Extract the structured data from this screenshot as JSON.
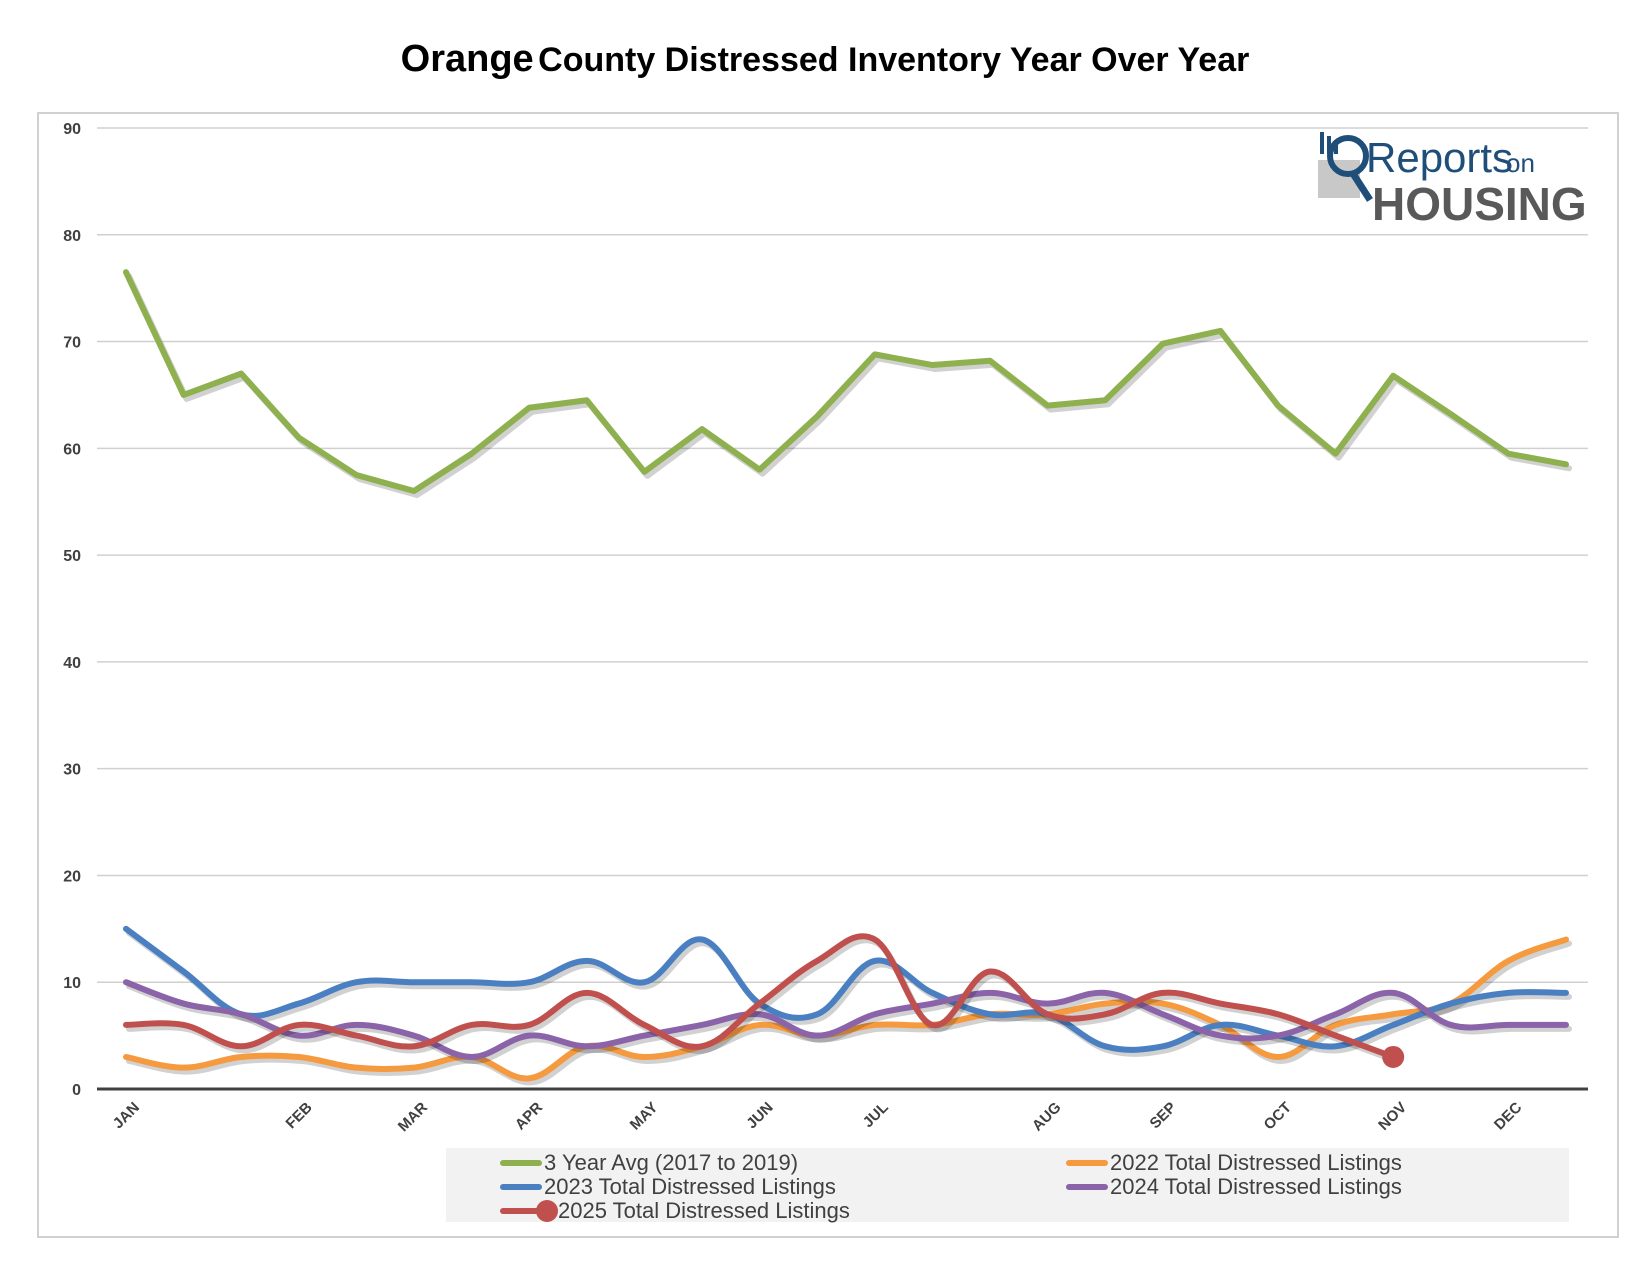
{
  "title": {
    "first_word": "Orange",
    "rest": "County Distressed Inventory Year Over Year"
  },
  "logo": {
    "reports": "Reports",
    "on": "on",
    "housing": "HOUSING"
  },
  "chart_data": {
    "type": "line",
    "title": "Orange County Distressed Inventory Year Over Year",
    "ylim": [
      0,
      90
    ],
    "yticks": [
      0,
      10,
      20,
      30,
      40,
      50,
      60,
      70,
      80,
      90
    ],
    "grid": true,
    "legend_position": "bottom",
    "month_labels": [
      "JAN",
      "FEB",
      "MAR",
      "APR",
      "MAY",
      "JUN",
      "JUL",
      "AUG",
      "SEP",
      "OCT",
      "NOV",
      "DEC"
    ],
    "month_positions": [
      0,
      3,
      5,
      7,
      9,
      11,
      13,
      16,
      18,
      20,
      22,
      24
    ],
    "point_count": 26,
    "series": [
      {
        "name": "3 Year Avg (2017 to 2019)",
        "color": "#8fb04f",
        "smooth": false,
        "values": [
          76.5,
          65,
          67,
          61,
          57.5,
          56,
          59.5,
          63.8,
          64.5,
          57.8,
          61.8,
          58,
          63,
          68.8,
          67.8,
          68.2,
          64,
          64.5,
          69.8,
          71,
          64,
          59.5,
          66.8,
          63.2,
          59.5,
          58.5
        ]
      },
      {
        "name": "2022 Total Distressed Listings",
        "color": "#f59a3f",
        "smooth": true,
        "values": [
          3,
          2,
          3,
          3,
          2,
          2,
          3,
          1,
          4,
          3,
          4,
          6,
          5,
          6,
          6,
          7,
          7,
          8,
          8,
          6,
          3,
          6,
          7,
          8,
          12,
          14
        ]
      },
      {
        "name": "2023 Total Distressed Listings",
        "color": "#4a7fc1",
        "smooth": true,
        "values": [
          15,
          11,
          7,
          8,
          10,
          10,
          10,
          10,
          12,
          10,
          14,
          8,
          7,
          12,
          9,
          7,
          7,
          4,
          4,
          6,
          5,
          4,
          6,
          8,
          9,
          9
        ]
      },
      {
        "name": "2024 Total Distressed Listings",
        "color": "#8a63a8",
        "smooth": true,
        "values": [
          10,
          8,
          7,
          5,
          6,
          5,
          3,
          5,
          4,
          5,
          6,
          7,
          5,
          7,
          8,
          9,
          8,
          9,
          7,
          5,
          5,
          7,
          9,
          6,
          6,
          6
        ]
      },
      {
        "name": "2025 Total Distressed Listings",
        "color": "#c0504d",
        "smooth": true,
        "marker_last": true,
        "values": [
          6,
          6,
          4,
          6,
          5,
          4,
          6,
          6,
          9,
          6,
          4,
          8,
          12,
          14,
          6,
          11,
          7,
          7,
          9,
          8,
          7,
          5,
          3
        ]
      }
    ]
  }
}
